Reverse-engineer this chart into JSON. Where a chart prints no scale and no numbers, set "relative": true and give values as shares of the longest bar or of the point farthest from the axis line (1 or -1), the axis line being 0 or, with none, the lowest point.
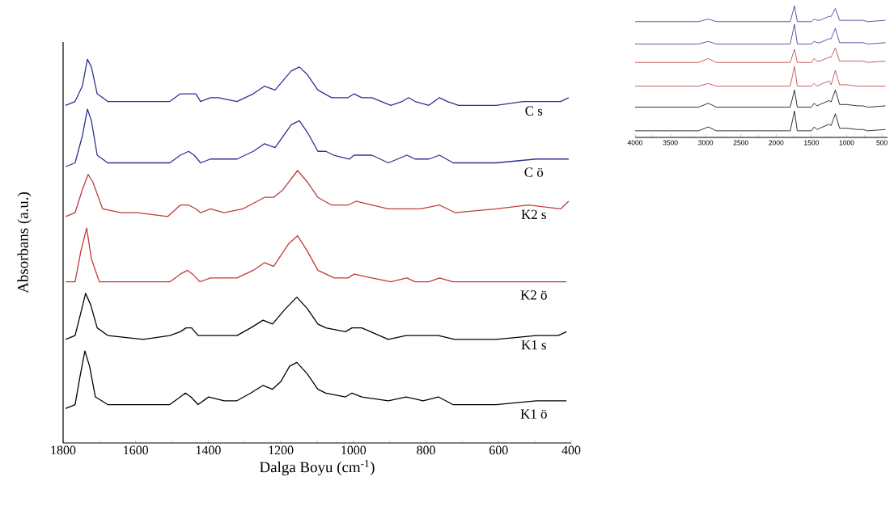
{
  "chart_data": [
    {
      "type": "line",
      "xlabel": "Dalga Boyu (cm$^{-1}$)",
      "ylabel": "Absorbans (a.u.)",
      "xlim": [
        1800,
        400
      ],
      "xticks": [
        1800,
        1600,
        1400,
        1200,
        1000,
        800,
        600,
        400
      ],
      "relative": true,
      "series": [
        {
          "name": "C s",
          "color": "#2e3192",
          "x": [
            1793,
            1767,
            1747,
            1733,
            1722,
            1706,
            1677,
            1617,
            1506,
            1477,
            1454,
            1434,
            1421,
            1394,
            1372,
            1321,
            1276,
            1245,
            1216,
            1171,
            1149,
            1127,
            1098,
            1060,
            1015,
            998,
            977,
            949,
            897,
            866,
            848,
            830,
            792,
            763,
            741,
            710,
            607,
            532,
            429,
            407
          ],
          "values": [
            0.88,
            0.89,
            0.93,
            1.0,
            0.98,
            0.91,
            0.89,
            0.89,
            0.89,
            0.91,
            0.91,
            0.91,
            0.89,
            0.9,
            0.9,
            0.89,
            0.91,
            0.93,
            0.92,
            0.97,
            0.98,
            0.96,
            0.92,
            0.9,
            0.9,
            0.91,
            0.9,
            0.9,
            0.88,
            0.89,
            0.9,
            0.89,
            0.88,
            0.9,
            0.89,
            0.88,
            0.88,
            0.89,
            0.89,
            0.9
          ]
        },
        {
          "name": "C ö",
          "color": "#2e3192",
          "x": [
            1793,
            1767,
            1747,
            1733,
            1722,
            1706,
            1677,
            1506,
            1477,
            1454,
            1439,
            1421,
            1394,
            1365,
            1321,
            1276,
            1245,
            1216,
            1171,
            1149,
            1127,
            1098,
            1076,
            1054,
            1011,
            998,
            949,
            904,
            853,
            830,
            792,
            763,
            725,
            607,
            496,
            407
          ],
          "values": [
            0.72,
            0.73,
            0.8,
            0.87,
            0.84,
            0.75,
            0.73,
            0.73,
            0.75,
            0.76,
            0.75,
            0.73,
            0.74,
            0.74,
            0.74,
            0.76,
            0.78,
            0.77,
            0.83,
            0.84,
            0.81,
            0.76,
            0.76,
            0.75,
            0.74,
            0.75,
            0.75,
            0.73,
            0.75,
            0.74,
            0.74,
            0.75,
            0.73,
            0.73,
            0.74,
            0.74
          ]
        },
        {
          "name": "K2 s",
          "color": "#c0393b",
          "x": [
            1793,
            1767,
            1747,
            1731,
            1718,
            1691,
            1640,
            1595,
            1512,
            1477,
            1454,
            1434,
            1421,
            1394,
            1356,
            1305,
            1245,
            1220,
            1194,
            1154,
            1127,
            1098,
            1060,
            1015,
            993,
            949,
            904,
            853,
            815,
            763,
            719,
            607,
            518,
            429,
            407
          ],
          "values": [
            0.59,
            0.6,
            0.66,
            0.7,
            0.68,
            0.61,
            0.6,
            0.6,
            0.59,
            0.62,
            0.62,
            0.61,
            0.6,
            0.61,
            0.6,
            0.61,
            0.64,
            0.64,
            0.66,
            0.71,
            0.68,
            0.64,
            0.62,
            0.62,
            0.63,
            0.62,
            0.61,
            0.61,
            0.61,
            0.62,
            0.6,
            0.61,
            0.62,
            0.61,
            0.63
          ]
        },
        {
          "name": "K2 ö",
          "color": "#c0393b",
          "x": [
            1793,
            1767,
            1751,
            1735,
            1722,
            1700,
            1617,
            1506,
            1477,
            1457,
            1443,
            1423,
            1394,
            1356,
            1321,
            1276,
            1245,
            1220,
            1178,
            1154,
            1127,
            1098,
            1053,
            1015,
            998,
            949,
            897,
            853,
            830,
            792,
            763,
            726,
            607,
            496,
            413
          ],
          "values": [
            0.42,
            0.42,
            0.5,
            0.56,
            0.48,
            0.42,
            0.42,
            0.42,
            0.44,
            0.45,
            0.44,
            0.42,
            0.43,
            0.43,
            0.43,
            0.45,
            0.47,
            0.46,
            0.52,
            0.54,
            0.5,
            0.45,
            0.43,
            0.43,
            0.44,
            0.43,
            0.42,
            0.43,
            0.42,
            0.42,
            0.43,
            0.42,
            0.42,
            0.42,
            0.42
          ]
        },
        {
          "name": "K1 s",
          "color": "#000000",
          "x": [
            1793,
            1767,
            1751,
            1738,
            1724,
            1706,
            1677,
            1579,
            1506,
            1477,
            1461,
            1446,
            1428,
            1399,
            1356,
            1321,
            1283,
            1249,
            1223,
            1187,
            1156,
            1127,
            1098,
            1076,
            1022,
            1004,
            977,
            904,
            855,
            808,
            766,
            721,
            607,
            496,
            436,
            413
          ],
          "values": [
            0.27,
            0.28,
            0.34,
            0.39,
            0.36,
            0.3,
            0.28,
            0.27,
            0.28,
            0.29,
            0.3,
            0.3,
            0.28,
            0.28,
            0.28,
            0.28,
            0.3,
            0.32,
            0.31,
            0.35,
            0.38,
            0.35,
            0.31,
            0.3,
            0.29,
            0.3,
            0.3,
            0.27,
            0.28,
            0.28,
            0.28,
            0.27,
            0.27,
            0.28,
            0.28,
            0.29
          ]
        },
        {
          "name": "K1 ö",
          "color": "#000000",
          "x": [
            1793,
            1767,
            1754,
            1740,
            1727,
            1711,
            1677,
            1579,
            1506,
            1477,
            1463,
            1448,
            1428,
            1399,
            1356,
            1321,
            1283,
            1249,
            1223,
            1200,
            1176,
            1156,
            1127,
            1098,
            1076,
            1022,
            1004,
            977,
            904,
            855,
            808,
            766,
            726,
            607,
            496,
            413
          ],
          "values": [
            0.09,
            0.1,
            0.17,
            0.24,
            0.2,
            0.12,
            0.1,
            0.1,
            0.1,
            0.12,
            0.13,
            0.12,
            0.1,
            0.12,
            0.11,
            0.11,
            0.13,
            0.15,
            0.14,
            0.16,
            0.2,
            0.21,
            0.18,
            0.14,
            0.13,
            0.12,
            0.13,
            0.12,
            0.11,
            0.12,
            0.11,
            0.12,
            0.1,
            0.1,
            0.11,
            0.11
          ]
        }
      ]
    },
    {
      "type": "line",
      "xlim": [
        4000,
        420
      ],
      "xticks": [
        4000,
        3500,
        3000,
        2500,
        2000,
        1500,
        1000,
        500
      ],
      "relative": true,
      "series": [
        {
          "color": "#2e3192",
          "x": [
            4000,
            3100,
            2960,
            2850,
            1800,
            1740,
            1700,
            1500,
            1460,
            1420,
            1380,
            1250,
            1220,
            1160,
            1100,
            1000,
            850,
            770,
            700,
            450
          ],
          "values": [
            0.88,
            0.88,
            0.9,
            0.88,
            0.88,
            1.0,
            0.88,
            0.88,
            0.9,
            0.89,
            0.89,
            0.92,
            0.92,
            0.98,
            0.89,
            0.89,
            0.89,
            0.89,
            0.88,
            0.89
          ]
        },
        {
          "color": "#2e3192",
          "x": [
            4000,
            3100,
            2960,
            2850,
            1800,
            1740,
            1700,
            1500,
            1460,
            1420,
            1380,
            1250,
            1220,
            1160,
            1100,
            1000,
            850,
            770,
            700,
            450
          ],
          "values": [
            0.71,
            0.71,
            0.73,
            0.71,
            0.71,
            0.86,
            0.71,
            0.71,
            0.73,
            0.72,
            0.72,
            0.75,
            0.75,
            0.83,
            0.72,
            0.72,
            0.72,
            0.72,
            0.71,
            0.72
          ]
        },
        {
          "color": "#c0393b",
          "x": [
            4000,
            3100,
            2960,
            2850,
            1800,
            1740,
            1700,
            1500,
            1460,
            1420,
            1380,
            1250,
            1220,
            1160,
            1100,
            1000,
            850,
            770,
            700,
            450
          ],
          "values": [
            0.57,
            0.57,
            0.6,
            0.57,
            0.57,
            0.67,
            0.57,
            0.57,
            0.6,
            0.58,
            0.58,
            0.61,
            0.61,
            0.68,
            0.58,
            0.58,
            0.58,
            0.58,
            0.57,
            0.58
          ]
        },
        {
          "color": "#c0393b",
          "x": [
            4000,
            3100,
            2960,
            2850,
            1800,
            1740,
            1700,
            1500,
            1460,
            1420,
            1380,
            1250,
            1220,
            1160,
            1100,
            1000,
            850,
            770,
            700,
            450
          ],
          "values": [
            0.39,
            0.39,
            0.41,
            0.39,
            0.39,
            0.54,
            0.39,
            0.39,
            0.41,
            0.39,
            0.4,
            0.43,
            0.4,
            0.51,
            0.4,
            0.4,
            0.39,
            0.39,
            0.39,
            0.39
          ]
        },
        {
          "color": "#000000",
          "x": [
            4000,
            3100,
            2960,
            2850,
            1800,
            1740,
            1700,
            1500,
            1460,
            1420,
            1380,
            1250,
            1220,
            1160,
            1100,
            1000,
            850,
            770,
            700,
            450
          ],
          "values": [
            0.23,
            0.23,
            0.26,
            0.23,
            0.23,
            0.36,
            0.23,
            0.23,
            0.26,
            0.24,
            0.25,
            0.28,
            0.27,
            0.36,
            0.25,
            0.25,
            0.24,
            0.24,
            0.23,
            0.24
          ]
        },
        {
          "color": "#000000",
          "x": [
            4000,
            3100,
            2960,
            2850,
            1800,
            1740,
            1700,
            1500,
            1460,
            1420,
            1380,
            1250,
            1220,
            1160,
            1100,
            1000,
            850,
            770,
            700,
            450
          ],
          "values": [
            0.05,
            0.05,
            0.08,
            0.05,
            0.05,
            0.2,
            0.05,
            0.05,
            0.08,
            0.06,
            0.07,
            0.1,
            0.09,
            0.18,
            0.07,
            0.07,
            0.06,
            0.06,
            0.05,
            0.06
          ]
        }
      ]
    }
  ]
}
